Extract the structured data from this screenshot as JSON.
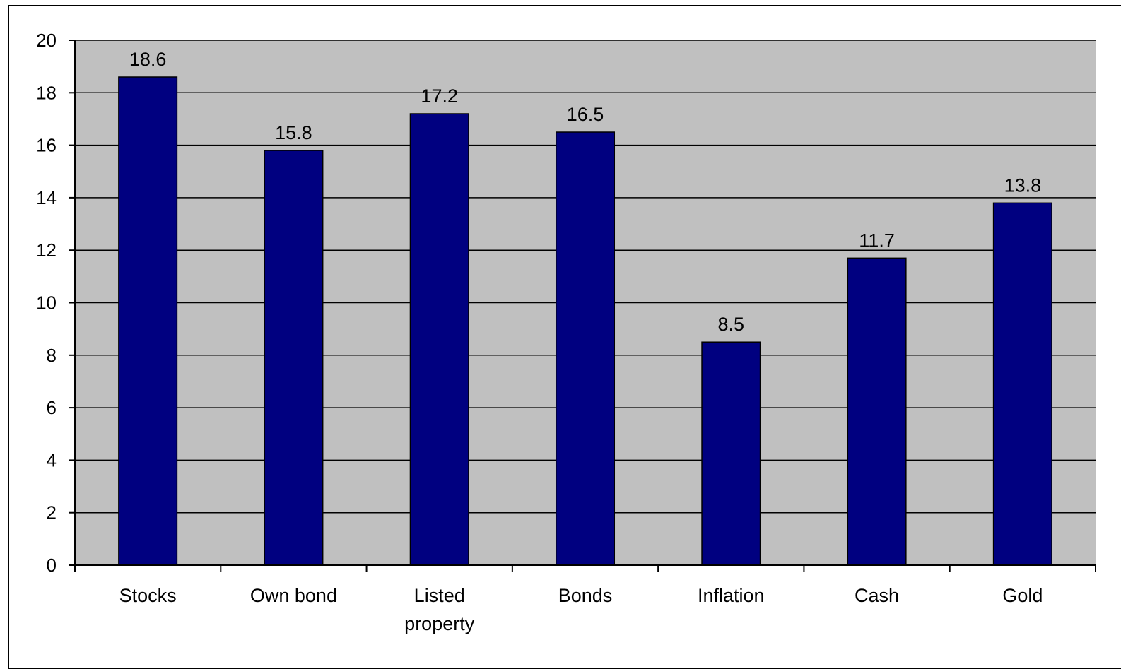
{
  "chart_data": {
    "type": "bar",
    "title": "",
    "xlabel": "",
    "ylabel": "",
    "categories": [
      [
        "Stocks"
      ],
      [
        "Own bond"
      ],
      [
        "Listed",
        "property"
      ],
      [
        "Bonds"
      ],
      [
        "Inflation"
      ],
      [
        "Cash"
      ],
      [
        "Gold"
      ]
    ],
    "values": [
      18.6,
      15.8,
      17.2,
      16.5,
      8.5,
      11.7,
      13.8
    ],
    "data_labels": [
      "18.6",
      "15.8",
      "17.2",
      "16.5",
      "8.5",
      "11.7",
      "13.8"
    ],
    "ylim": [
      0,
      20
    ],
    "yticks": [
      0,
      2,
      4,
      6,
      8,
      10,
      12,
      14,
      16,
      18,
      20
    ],
    "grid": true,
    "legend": "none",
    "colors": {
      "bar_fill": "#000080",
      "bar_stroke": "#000000",
      "plot_background": "#c0c0c0",
      "grid_line": "#000000",
      "page_background": "#ffffff"
    }
  }
}
